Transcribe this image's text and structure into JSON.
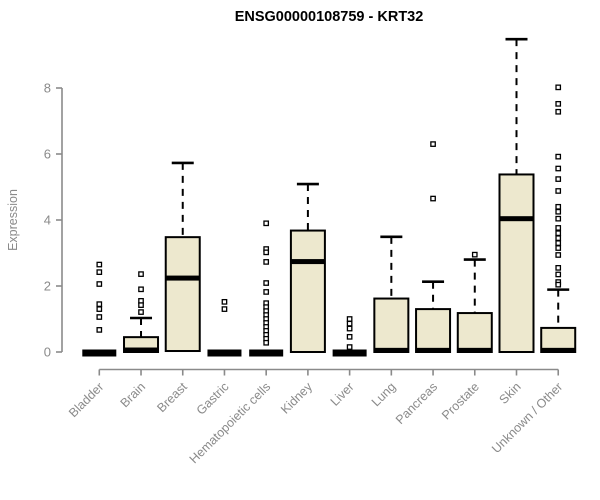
{
  "chart_data": {
    "type": "boxplot",
    "title": "ENSG00000108759 - KRT32",
    "xlabel": "",
    "ylabel": "Expression",
    "y_ticks": [
      0,
      2,
      4,
      6,
      8
    ],
    "ylim": [
      -0.35,
      9.6
    ],
    "grid": false,
    "legend": "none",
    "colors": {
      "box_fill": "#EDE8CE",
      "box_stroke": "#000000",
      "axis": "#8a8a8a",
      "title": "#000000",
      "background": "#ffffff"
    },
    "categories": [
      "Bladder",
      "Brain",
      "Breast",
      "Gastric",
      "Hematopoietic cells",
      "Kidney",
      "Liver",
      "Lung",
      "Pancreas",
      "Prostate",
      "Skin",
      "Unknown / Other"
    ],
    "series": [
      {
        "category": "Bladder",
        "collapsed": true,
        "q1": 0,
        "median": 0,
        "q3": 0.03,
        "whisker_low": 0,
        "whisker_high": 0.03,
        "outliers": [
          2.65,
          2.42,
          2.06,
          1.45,
          1.3,
          1.06,
          0.67
        ]
      },
      {
        "category": "Brain",
        "collapsed": false,
        "q1": 0,
        "median": 0.06,
        "q3": 0.45,
        "whisker_low": 0,
        "whisker_high": 1.03,
        "outliers": [
          2.36,
          1.9,
          1.55,
          1.42,
          1.21
        ]
      },
      {
        "category": "Breast",
        "collapsed": false,
        "q1": 0.03,
        "median": 2.24,
        "q3": 3.48,
        "whisker_low": 0.03,
        "whisker_high": 5.73,
        "outliers": []
      },
      {
        "category": "Gastric",
        "collapsed": true,
        "q1": 0,
        "median": 0,
        "q3": 0.03,
        "whisker_low": 0,
        "whisker_high": 0.03,
        "outliers": [
          1.52,
          1.3
        ]
      },
      {
        "category": "Hematopoietic cells",
        "collapsed": true,
        "q1": 0,
        "median": 0,
        "q3": 0.03,
        "whisker_low": 0,
        "whisker_high": 0.03,
        "outliers": [
          3.9,
          3.12,
          3.02,
          2.73,
          2.09,
          1.82,
          1.48,
          1.36,
          1.24,
          1.12,
          1.0,
          0.88,
          0.76,
          0.64,
          0.52,
          0.4,
          0.28
        ]
      },
      {
        "category": "Kidney",
        "collapsed": false,
        "q1": 0,
        "median": 2.74,
        "q3": 3.68,
        "whisker_low": 0,
        "whisker_high": 5.09,
        "outliers": []
      },
      {
        "category": "Liver",
        "collapsed": true,
        "q1": 0,
        "median": 0,
        "q3": 0.03,
        "whisker_low": 0,
        "whisker_high": 0.03,
        "outliers": [
          1.0,
          0.86,
          0.71,
          0.46,
          0.15
        ]
      },
      {
        "category": "Lung",
        "collapsed": false,
        "q1": 0,
        "median": 0.05,
        "q3": 1.62,
        "whisker_low": 0,
        "whisker_high": 3.49,
        "outliers": []
      },
      {
        "category": "Pancreas",
        "collapsed": false,
        "q1": 0,
        "median": 0.05,
        "q3": 1.3,
        "whisker_low": 0,
        "whisker_high": 2.13,
        "outliers": [
          6.3,
          4.65
        ]
      },
      {
        "category": "Prostate",
        "collapsed": false,
        "q1": 0,
        "median": 0.05,
        "q3": 1.18,
        "whisker_low": 0,
        "whisker_high": 2.8,
        "outliers": [
          2.95
        ]
      },
      {
        "category": "Skin",
        "collapsed": false,
        "q1": 0,
        "median": 4.04,
        "q3": 5.38,
        "whisker_low": 0,
        "whisker_high": 9.48,
        "outliers": []
      },
      {
        "category": "Unknown / Other",
        "collapsed": false,
        "q1": 0,
        "median": 0.05,
        "q3": 0.73,
        "whisker_low": 0,
        "whisker_high": 1.89,
        "outliers": [
          8.02,
          7.52,
          7.28,
          5.92,
          5.56,
          5.24,
          4.88,
          4.4,
          4.25,
          4.04,
          3.76,
          3.6,
          3.45,
          3.3,
          3.15,
          2.94,
          2.55,
          2.35,
          2.12,
          2.04
        ]
      }
    ]
  }
}
